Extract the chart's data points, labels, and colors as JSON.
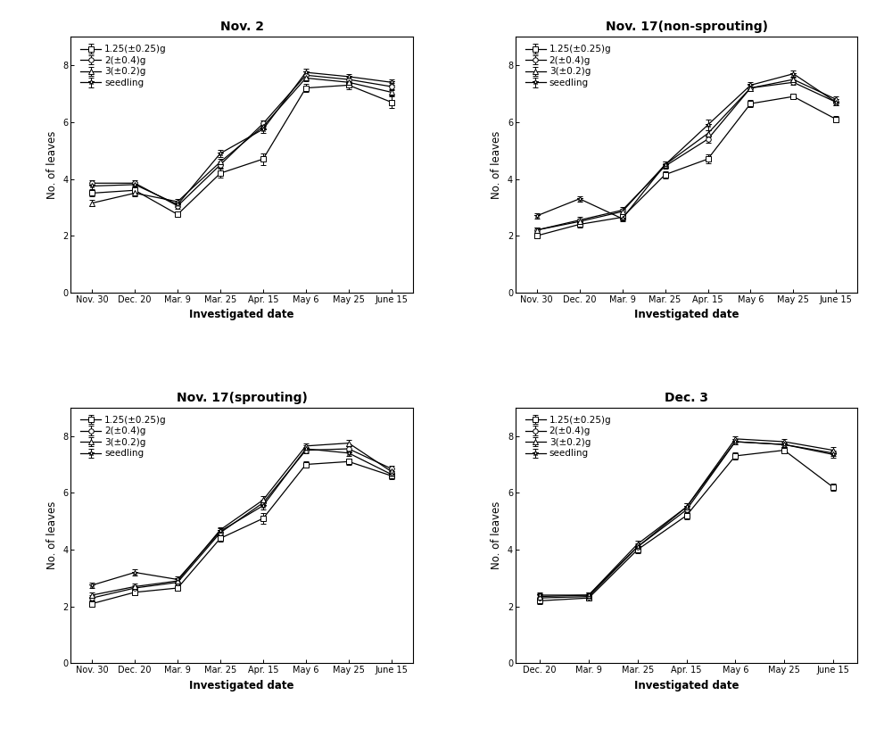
{
  "panels": [
    {
      "title": "Nov. 2",
      "x_labels": [
        "Nov. 30",
        "Dec. 20",
        "Mar. 9",
        "Mar. 25",
        "Apr. 15",
        "May 6",
        "May 25",
        "June 15"
      ],
      "series": [
        {
          "label": "1.25(±0.25)g",
          "marker": "s",
          "values": [
            3.5,
            3.6,
            2.75,
            4.2,
            4.7,
            7.2,
            7.3,
            6.7
          ],
          "errors": [
            0.12,
            0.12,
            0.1,
            0.15,
            0.2,
            0.15,
            0.15,
            0.2
          ]
        },
        {
          "label": "2(±0.4)g",
          "marker": "o",
          "values": [
            3.85,
            3.85,
            3.05,
            4.5,
            5.95,
            7.65,
            7.5,
            7.25
          ],
          "errors": [
            0.1,
            0.1,
            0.1,
            0.12,
            0.12,
            0.12,
            0.1,
            0.12
          ]
        },
        {
          "label": "3(±0.2)g",
          "marker": "^",
          "values": [
            3.15,
            3.5,
            3.2,
            4.6,
            5.85,
            7.55,
            7.4,
            7.05
          ],
          "errors": [
            0.1,
            0.1,
            0.1,
            0.1,
            0.12,
            0.1,
            0.1,
            0.12
          ]
        },
        {
          "label": "seedling",
          "marker": "*",
          "values": [
            3.75,
            3.8,
            3.1,
            4.9,
            5.75,
            7.75,
            7.6,
            7.4
          ],
          "errors": [
            0.1,
            0.1,
            0.1,
            0.12,
            0.12,
            0.12,
            0.1,
            0.1
          ]
        }
      ]
    },
    {
      "title": "Nov. 17(non-sprouting)",
      "x_labels": [
        "Nov. 30",
        "Dec. 20",
        "Mar. 9",
        "Mar. 25",
        "Apr. 15",
        "May 6",
        "May 25",
        "June 15"
      ],
      "series": [
        {
          "label": "1.25(±0.25)g",
          "marker": "s",
          "values": [
            2.0,
            2.4,
            2.65,
            4.15,
            4.7,
            6.65,
            6.9,
            6.1
          ],
          "errors": [
            0.1,
            0.1,
            0.1,
            0.12,
            0.15,
            0.12,
            0.1,
            0.12
          ]
        },
        {
          "label": "2(±0.4)g",
          "marker": "o",
          "values": [
            2.2,
            2.55,
            2.9,
            4.45,
            5.4,
            7.2,
            7.4,
            6.7
          ],
          "errors": [
            0.1,
            0.1,
            0.1,
            0.1,
            0.12,
            0.12,
            0.1,
            0.1
          ]
        },
        {
          "label": "3(±0.2)g",
          "marker": "^",
          "values": [
            2.2,
            2.5,
            2.85,
            4.5,
            5.6,
            7.2,
            7.5,
            6.8
          ],
          "errors": [
            0.1,
            0.1,
            0.1,
            0.1,
            0.12,
            0.1,
            0.1,
            0.1
          ]
        },
        {
          "label": "seedling",
          "marker": "*",
          "values": [
            2.7,
            3.3,
            2.6,
            4.5,
            5.9,
            7.3,
            7.7,
            6.7
          ],
          "errors": [
            0.1,
            0.1,
            0.1,
            0.12,
            0.18,
            0.12,
            0.12,
            0.1
          ]
        }
      ]
    },
    {
      "title": "Nov. 17(sprouting)",
      "x_labels": [
        "Nov. 30",
        "Dec. 20",
        "Mar. 9",
        "Mar. 25",
        "Apr. 15",
        "May 6",
        "May 25",
        "June 15"
      ],
      "series": [
        {
          "label": "1.25(±0.25)g",
          "marker": "s",
          "values": [
            2.1,
            2.5,
            2.65,
            4.4,
            5.1,
            7.0,
            7.1,
            6.6
          ],
          "errors": [
            0.1,
            0.1,
            0.1,
            0.12,
            0.18,
            0.12,
            0.1,
            0.12
          ]
        },
        {
          "label": "2(±0.4)g",
          "marker": "o",
          "values": [
            2.3,
            2.65,
            2.85,
            4.6,
            5.65,
            7.5,
            7.55,
            6.85
          ],
          "errors": [
            0.1,
            0.1,
            0.1,
            0.1,
            0.12,
            0.1,
            0.1,
            0.1
          ]
        },
        {
          "label": "3(±0.2)g",
          "marker": "^",
          "values": [
            2.4,
            2.7,
            2.9,
            4.7,
            5.75,
            7.65,
            7.75,
            6.75
          ],
          "errors": [
            0.1,
            0.1,
            0.1,
            0.1,
            0.12,
            0.1,
            0.1,
            0.12
          ]
        },
        {
          "label": "seedling",
          "marker": "*",
          "values": [
            2.75,
            3.2,
            2.95,
            4.65,
            5.55,
            7.55,
            7.4,
            6.65
          ],
          "errors": [
            0.1,
            0.1,
            0.1,
            0.12,
            0.12,
            0.12,
            0.1,
            0.1
          ]
        }
      ]
    },
    {
      "title": "Dec. 3",
      "x_labels": [
        "Dec. 20",
        "Mar. 9",
        "Mar. 25",
        "Apr. 15",
        "May 6",
        "May 25",
        "June 15"
      ],
      "series": [
        {
          "label": "1.25(±0.25)g",
          "marker": "s",
          "values": [
            2.2,
            2.3,
            4.0,
            5.2,
            7.3,
            7.5,
            6.2
          ],
          "errors": [
            0.1,
            0.1,
            0.12,
            0.12,
            0.12,
            0.1,
            0.12
          ]
        },
        {
          "label": "2(±0.4)g",
          "marker": "o",
          "values": [
            2.3,
            2.35,
            4.1,
            5.4,
            7.8,
            7.7,
            7.4
          ],
          "errors": [
            0.1,
            0.1,
            0.1,
            0.12,
            0.1,
            0.1,
            0.1
          ]
        },
        {
          "label": "3(±0.2)g",
          "marker": "^",
          "values": [
            2.35,
            2.4,
            4.2,
            5.5,
            7.9,
            7.8,
            7.5
          ],
          "errors": [
            0.1,
            0.1,
            0.1,
            0.12,
            0.1,
            0.1,
            0.1
          ]
        },
        {
          "label": "seedling",
          "marker": "*",
          "values": [
            2.4,
            2.4,
            4.1,
            5.5,
            7.8,
            7.7,
            7.35
          ],
          "errors": [
            0.1,
            0.1,
            0.12,
            0.12,
            0.1,
            0.1,
            0.1
          ]
        }
      ]
    }
  ],
  "ylabel": "No. of leaves",
  "xlabel": "Investigated date",
  "ylim": [
    0,
    9
  ],
  "yticks": [
    0,
    2,
    4,
    6,
    8
  ],
  "line_color": "#000000",
  "marker_size": 4,
  "capsize": 2,
  "elinewidth": 0.7,
  "linewidth": 0.9,
  "legend_fontsize": 7.5,
  "axis_fontsize": 8.5,
  "title_fontsize": 10,
  "tick_fontsize": 7
}
